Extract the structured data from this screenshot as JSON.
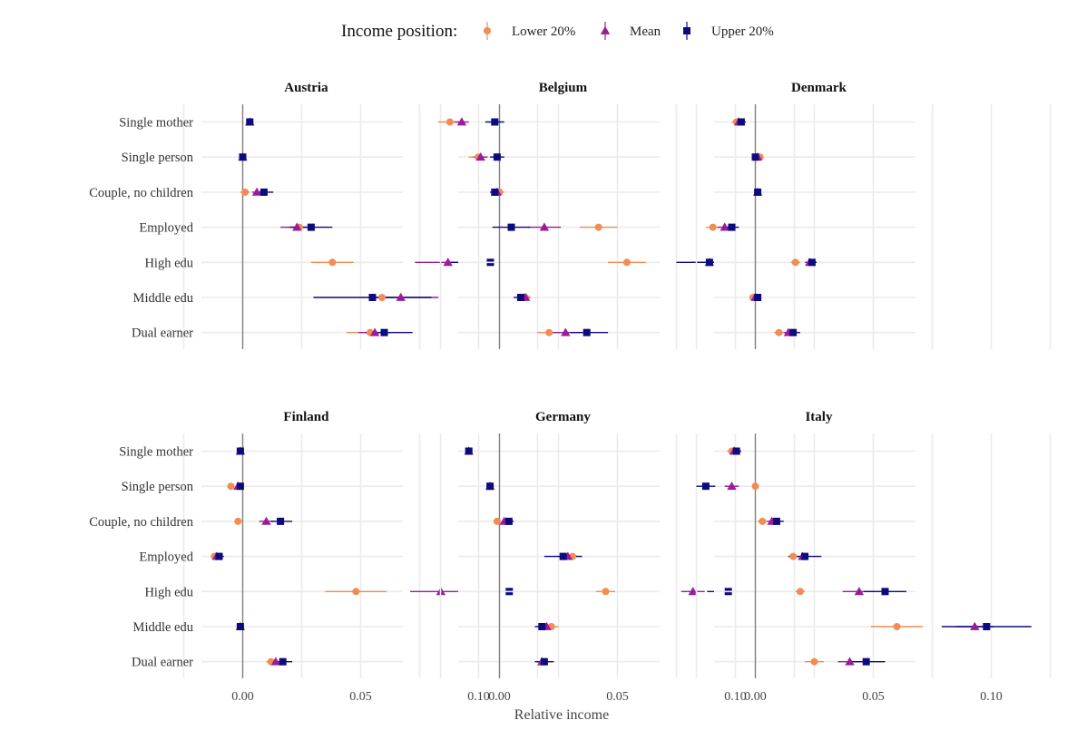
{
  "chart_data": {
    "type": "scatter",
    "subtype": "dot-whisker small multiples",
    "legend": {
      "title": "Income position:",
      "placement": "top",
      "entries": [
        {
          "name": "Lower 20%",
          "color": "#F28C52",
          "shape": "circle"
        },
        {
          "name": "Mean",
          "color": "#9A1C9A",
          "shape": "triangle"
        },
        {
          "name": "Upper 20%",
          "color": "#0D0A7E",
          "shape": "square"
        }
      ]
    },
    "xlabel": "Relative income",
    "ylabel": "",
    "xlim": [
      -0.025,
      0.125
    ],
    "xticks": [
      0.0,
      0.05,
      0.1
    ],
    "xtick_labels": [
      "0.00",
      "0.05",
      "0.10"
    ],
    "grid": true,
    "categories": [
      "Single mother",
      "Single person",
      "Couple, no children",
      "Employed",
      "High edu",
      "Middle edu",
      "Dual earner"
    ],
    "panels": [
      {
        "title": "Austria",
        "series": [
          {
            "name": "Lower 20%",
            "values": [
              0.003,
              0.0,
              0.001,
              0.024,
              0.038,
              0.059,
              0.054
            ],
            "ci_low": [
              0.002,
              -0.001,
              -0.001,
              0.019,
              0.029,
              0.054,
              0.044
            ],
            "ci_high": [
              0.004,
              0.001,
              0.003,
              0.029,
              0.047,
              0.064,
              0.062
            ]
          },
          {
            "name": "Mean",
            "values": [
              0.003,
              0.0,
              0.006,
              0.023,
              0.087,
              0.067,
              0.056
            ],
            "ci_low": [
              0.002,
              -0.001,
              0.004,
              0.016,
              0.073,
              0.057,
              0.049
            ],
            "ci_high": [
              0.004,
              0.001,
              0.008,
              0.03,
              0.101,
              0.083,
              0.063
            ]
          },
          {
            "name": "Upper 20%",
            "values": [
              0.003,
              0.0,
              0.009,
              0.029,
              0.105,
              0.055,
              0.06
            ],
            "ci_low": [
              0.002,
              -0.001,
              0.005,
              0.02,
              0.088,
              0.03,
              0.052
            ],
            "ci_high": [
              0.004,
              0.001,
              0.013,
              0.038,
              0.122,
              0.08,
              0.072
            ]
          }
        ]
      },
      {
        "title": "Belgium",
        "series": [
          {
            "name": "Lower 20%",
            "values": [
              -0.021,
              -0.009,
              0.0,
              0.042,
              0.054,
              0.011,
              0.021
            ],
            "ci_low": [
              -0.026,
              -0.013,
              -0.002,
              0.034,
              0.046,
              0.009,
              0.016
            ],
            "ci_high": [
              -0.016,
              -0.005,
              0.002,
              0.05,
              0.062,
              0.013,
              0.026
            ]
          },
          {
            "name": "Mean",
            "values": [
              -0.016,
              -0.008,
              -0.001,
              0.019,
              0.089,
              0.011,
              0.028
            ],
            "ci_low": [
              -0.019,
              -0.011,
              -0.003,
              0.012,
              0.081,
              0.009,
              0.022
            ],
            "ci_high": [
              -0.013,
              -0.005,
              0.001,
              0.026,
              0.097,
              0.013,
              0.034
            ]
          },
          {
            "name": "Upper 20%",
            "values": [
              -0.002,
              -0.001,
              -0.002,
              0.005,
              0.089,
              0.009,
              0.037
            ],
            "ci_low": [
              -0.006,
              -0.004,
              -0.004,
              -0.003,
              0.075,
              0.006,
              0.03
            ],
            "ci_high": [
              0.002,
              0.002,
              0.0,
              0.013,
              0.105,
              0.012,
              0.046
            ]
          }
        ]
      },
      {
        "title": "Denmark",
        "series": [
          {
            "name": "Lower 20%",
            "values": [
              -0.008,
              0.002,
              0.001,
              -0.018,
              0.017,
              -0.001,
              0.01
            ],
            "ci_low": [
              -0.01,
              0.001,
              0.0,
              -0.021,
              0.015,
              -0.002,
              0.008
            ],
            "ci_high": [
              -0.006,
              0.003,
              0.002,
              -0.015,
              0.019,
              0.0,
              0.012
            ]
          },
          {
            "name": "Mean",
            "values": [
              -0.007,
              0.001,
              0.001,
              -0.013,
              0.023,
              0.0,
              0.014
            ],
            "ci_low": [
              -0.009,
              0.0,
              0.0,
              -0.016,
              0.021,
              -0.001,
              0.012
            ],
            "ci_high": [
              -0.005,
              0.002,
              0.002,
              -0.01,
              0.025,
              0.001,
              0.016
            ]
          },
          {
            "name": "Upper 20%",
            "values": [
              -0.006,
              0.0,
              0.001,
              -0.01,
              0.024,
              0.001,
              0.016
            ],
            "ci_low": [
              -0.008,
              -0.001,
              0.0,
              -0.013,
              0.022,
              0.0,
              0.013
            ],
            "ci_high": [
              -0.004,
              0.001,
              0.002,
              -0.007,
              0.026,
              0.002,
              0.019
            ]
          }
        ]
      },
      {
        "title": "Finland",
        "series": [
          {
            "name": "Lower 20%",
            "values": [
              -0.001,
              -0.005,
              -0.002,
              -0.012,
              0.048,
              -0.001,
              0.012
            ],
            "ci_low": [
              -0.002,
              -0.006,
              -0.003,
              -0.013,
              0.035,
              -0.002,
              0.01
            ],
            "ci_high": [
              0.0,
              -0.004,
              -0.001,
              -0.011,
              0.061,
              0.0,
              0.014
            ]
          },
          {
            "name": "Mean",
            "values": [
              -0.001,
              -0.002,
              0.01,
              -0.011,
              0.084,
              -0.001,
              0.014
            ],
            "ci_low": [
              -0.002,
              -0.003,
              0.007,
              -0.012,
              0.071,
              -0.002,
              0.012
            ],
            "ci_high": [
              0.0,
              -0.001,
              0.013,
              -0.01,
              0.097,
              0.0,
              0.016
            ]
          },
          {
            "name": "Upper 20%",
            "values": [
              -0.001,
              -0.001,
              0.016,
              -0.01,
              0.113,
              -0.001,
              0.017
            ],
            "ci_low": [
              -0.002,
              -0.002,
              0.012,
              -0.012,
              0.093,
              -0.002,
              0.013
            ],
            "ci_high": [
              0.0,
              0.0,
              0.021,
              -0.008,
              0.133,
              0.0,
              0.021
            ]
          }
        ]
      },
      {
        "title": "Germany",
        "series": [
          {
            "name": "Lower 20%",
            "values": [
              -0.013,
              -0.004,
              -0.001,
              0.031,
              0.045,
              0.022,
              0.019
            ],
            "ci_low": [
              -0.014,
              -0.005,
              -0.002,
              0.027,
              0.041,
              0.019,
              0.017
            ],
            "ci_high": [
              -0.012,
              -0.003,
              0.0,
              0.035,
              0.049,
              0.025,
              0.021
            ]
          },
          {
            "name": "Mean",
            "values": [
              -0.013,
              -0.004,
              0.002,
              0.029,
              0.082,
              0.02,
              0.018
            ],
            "ci_low": [
              -0.014,
              -0.005,
              0.001,
              0.025,
              0.077,
              0.018,
              0.016
            ],
            "ci_high": [
              -0.012,
              -0.003,
              0.003,
              0.033,
              0.087,
              0.022,
              0.02
            ]
          },
          {
            "name": "Upper 20%",
            "values": [
              -0.013,
              -0.004,
              0.004,
              0.027,
              0.097,
              0.018,
              0.019
            ],
            "ci_low": [
              -0.014,
              -0.005,
              0.002,
              0.019,
              0.088,
              0.015,
              0.015
            ],
            "ci_high": [
              -0.012,
              -0.003,
              0.006,
              0.035,
              0.106,
              0.021,
              0.023
            ]
          }
        ]
      },
      {
        "title": "Italy",
        "series": [
          {
            "name": "Lower 20%",
            "values": [
              -0.01,
              0.0,
              0.003,
              0.016,
              0.019,
              0.06,
              0.025
            ],
            "ci_low": [
              -0.012,
              -0.001,
              0.001,
              0.014,
              0.017,
              0.049,
              0.021
            ],
            "ci_high": [
              -0.008,
              0.001,
              0.005,
              0.018,
              0.021,
              0.071,
              0.029
            ]
          },
          {
            "name": "Mean",
            "values": [
              -0.009,
              -0.01,
              0.007,
              0.02,
              0.044,
              0.093,
              0.04
            ],
            "ci_low": [
              -0.011,
              -0.013,
              0.005,
              0.018,
              0.037,
              0.085,
              0.035
            ],
            "ci_high": [
              -0.007,
              -0.007,
              0.009,
              0.022,
              0.051,
              0.101,
              0.045
            ]
          },
          {
            "name": "Upper 20%",
            "values": [
              -0.008,
              -0.021,
              0.009,
              0.021,
              0.055,
              0.098,
              0.047
            ],
            "ci_low": [
              -0.01,
              -0.025,
              0.006,
              0.014,
              0.046,
              0.079,
              0.039
            ],
            "ci_high": [
              -0.006,
              -0.017,
              0.012,
              0.028,
              0.064,
              0.117,
              0.055
            ]
          }
        ]
      }
    ]
  }
}
